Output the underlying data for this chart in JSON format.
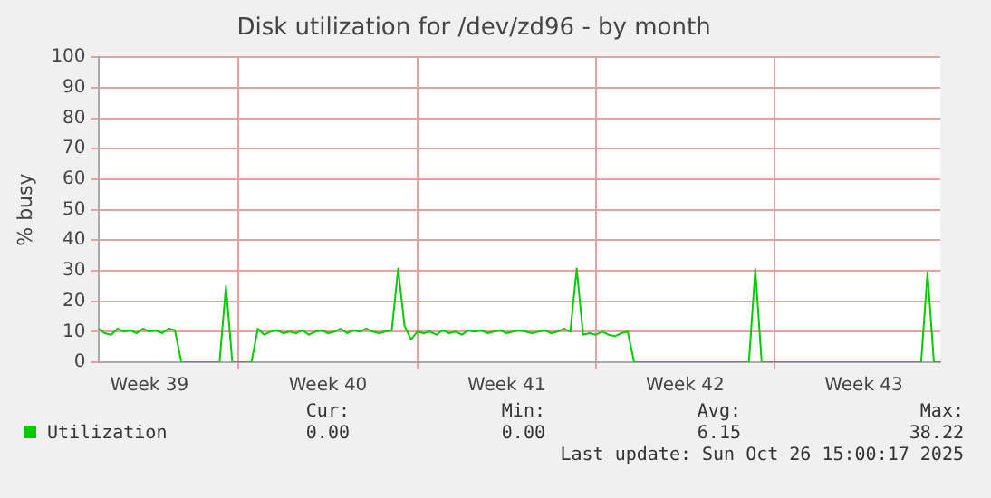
{
  "chart_data": {
    "type": "line",
    "title": "Disk utilization for /dev/zd96 - by month",
    "ylabel": "% busy",
    "categories": [
      null,
      null,
      null,
      null,
      null,
      null,
      null,
      null,
      "Week 39",
      null,
      null,
      null,
      null,
      null,
      null,
      null,
      null,
      null,
      null,
      null,
      null,
      null,
      null,
      null,
      null,
      null,
      null,
      null,
      null,
      null,
      null,
      null,
      null,
      null,
      null,
      null,
      "Week 40",
      null,
      null,
      null,
      null,
      null,
      null,
      null,
      null,
      null,
      null,
      null,
      null,
      null,
      null,
      null,
      null,
      null,
      null,
      null,
      null,
      null,
      null,
      null,
      null,
      null,
      null,
      null,
      "Week 41",
      null,
      null,
      null,
      null,
      null,
      null,
      null,
      null,
      null,
      null,
      null,
      null,
      null,
      null,
      null,
      null,
      null,
      null,
      null,
      null,
      null,
      null,
      null,
      null,
      null,
      null,
      null,
      "Week 42",
      null,
      null,
      null,
      null,
      null,
      null,
      null,
      null,
      null,
      null,
      null,
      null,
      null,
      null,
      null,
      null,
      null,
      null,
      null,
      null,
      null,
      null,
      null,
      null,
      null,
      null,
      null,
      "Week 43",
      null,
      null,
      null,
      null,
      null,
      null,
      null,
      null,
      null,
      null,
      null,
      null
    ],
    "series": [
      {
        "name": "Utilization",
        "color": "#00cc00",
        "values": [
          11,
          9.5,
          9,
          11,
          10,
          10.5,
          9.5,
          11,
          10,
          10.5,
          9.5,
          11,
          10.5,
          0,
          0,
          0,
          0,
          0,
          0,
          0,
          25,
          0,
          0,
          0,
          0,
          11,
          9,
          10,
          10.5,
          9.5,
          10,
          9.5,
          10.5,
          9,
          10,
          10.5,
          9.5,
          10,
          11,
          9.5,
          10.5,
          10,
          11,
          10,
          9.5,
          10,
          10.5,
          30.7,
          12,
          7.4,
          10,
          9.5,
          10,
          9,
          10.5,
          9.5,
          10,
          9,
          10.5,
          10,
          10.5,
          9.5,
          10,
          10.5,
          9.5,
          10,
          10.5,
          10,
          9.5,
          10,
          10.5,
          9.5,
          10,
          11,
          10,
          30.7,
          9,
          9.5,
          9,
          10,
          9,
          8.5,
          9.5,
          10,
          0,
          0,
          0,
          0,
          0,
          0,
          0,
          0,
          0,
          0,
          0,
          0,
          0,
          0,
          0,
          0,
          0,
          0,
          0,
          30.5,
          0,
          0,
          0,
          0,
          0,
          0,
          0,
          0,
          0,
          0,
          0,
          0,
          0,
          0,
          0,
          0,
          0,
          0,
          0,
          0,
          0,
          0,
          0,
          0,
          0,
          0,
          29.5,
          0,
          0
        ]
      }
    ],
    "ylim": [
      0,
      100
    ],
    "yticks": [
      0,
      10,
      20,
      30,
      40,
      50,
      60,
      70,
      80,
      90,
      100
    ],
    "grid": true,
    "legend": "bottom",
    "marker": "none",
    "line_style": "solid",
    "annotations": [
      "Cur:",
      "Min:",
      "Avg:",
      "Max:",
      "0.00",
      "0.00",
      "6.15",
      "38.22",
      "Last update: Sun Oct 26 15:00:17 2025"
    ]
  }
}
